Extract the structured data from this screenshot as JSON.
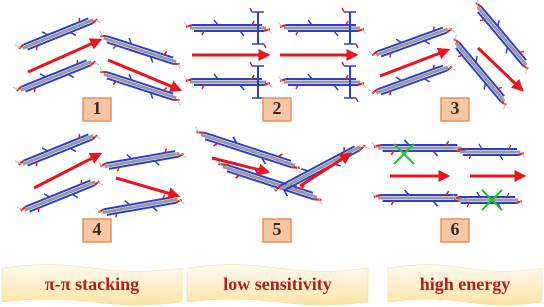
{
  "panels": [
    {
      "label": "1"
    },
    {
      "label": "2"
    },
    {
      "label": "3"
    },
    {
      "label": "4"
    },
    {
      "label": "5"
    },
    {
      "label": "6"
    }
  ],
  "captions": [
    "π-π stacking",
    "low sensitivity",
    "high energy"
  ]
}
